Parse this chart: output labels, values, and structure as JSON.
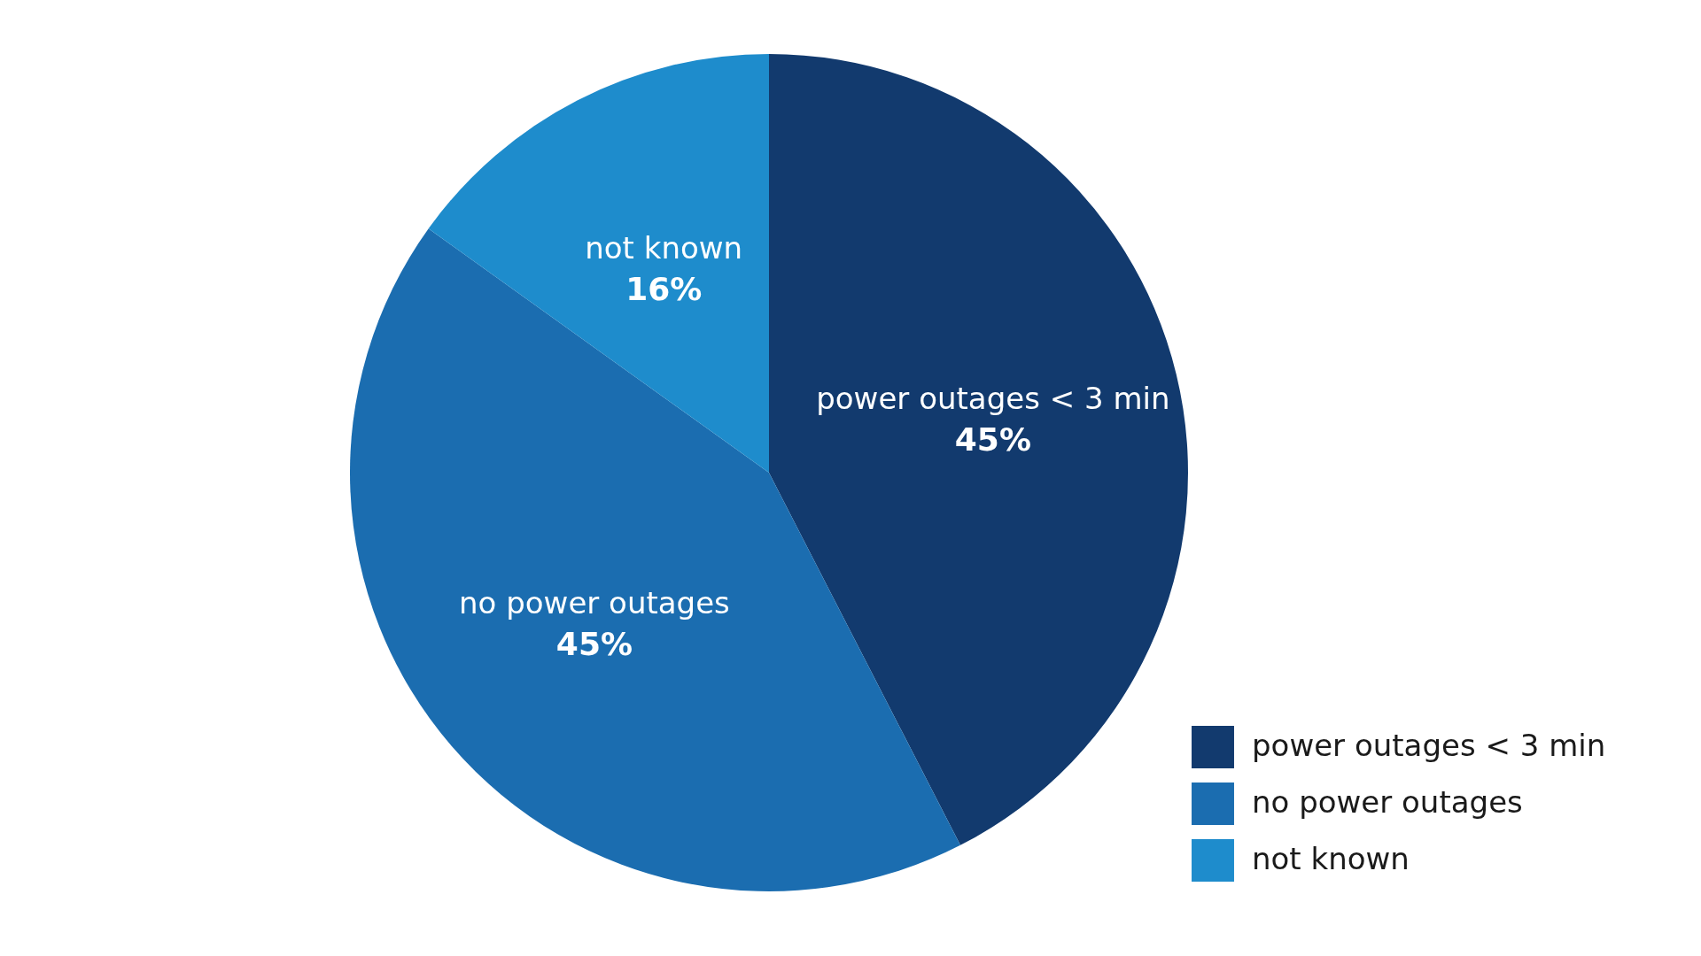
{
  "chart_data": {
    "type": "pie",
    "categories": [
      "power outages < 3 min",
      "no power outages",
      "not known"
    ],
    "values": [
      45,
      45,
      16
    ],
    "value_labels": [
      "45%",
      "45%",
      "16%"
    ],
    "colors": [
      "#123a6e",
      "#1b6db0",
      "#1e8ccc"
    ],
    "legend": "bottom right"
  }
}
